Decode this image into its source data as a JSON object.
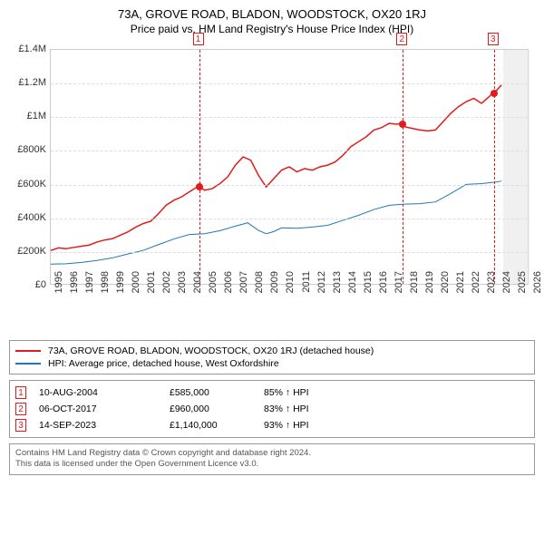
{
  "title": "73A, GROVE ROAD, BLADON, WOODSTOCK, OX20 1RJ",
  "subtitle": "Price paid vs. HM Land Registry's House Price Index (HPI)",
  "chart": {
    "type": "line",
    "x_range": [
      1995,
      2026
    ],
    "y_range": [
      0,
      1400000
    ],
    "y_ticks": [
      {
        "v": 0,
        "label": "£0"
      },
      {
        "v": 200000,
        "label": "£200K"
      },
      {
        "v": 400000,
        "label": "£400K"
      },
      {
        "v": 600000,
        "label": "£600K"
      },
      {
        "v": 800000,
        "label": "£800K"
      },
      {
        "v": 1000000,
        "label": "£1M"
      },
      {
        "v": 1200000,
        "label": "£1.2M"
      },
      {
        "v": 1400000,
        "label": "£1.4M"
      }
    ],
    "x_ticks": [
      1995,
      1996,
      1997,
      1998,
      1999,
      2000,
      2001,
      2002,
      2003,
      2004,
      2005,
      2006,
      2007,
      2008,
      2009,
      2010,
      2011,
      2012,
      2013,
      2014,
      2015,
      2016,
      2017,
      2018,
      2019,
      2020,
      2021,
      2022,
      2023,
      2024,
      2025,
      2026
    ],
    "shaded_future": {
      "from": 2024.3,
      "to": 2026,
      "color": "#e6e6e6"
    },
    "series_property": {
      "color": "#e31a1c",
      "width": 1.5,
      "label": "73A, GROVE ROAD, BLADON, WOODSTOCK, OX20 1RJ (detached house)",
      "data": [
        [
          1995.0,
          200000
        ],
        [
          1995.5,
          215000
        ],
        [
          1996.0,
          210000
        ],
        [
          1996.5,
          218000
        ],
        [
          1997.0,
          225000
        ],
        [
          1997.5,
          232000
        ],
        [
          1998.0,
          250000
        ],
        [
          1998.5,
          262000
        ],
        [
          1999.0,
          270000
        ],
        [
          1999.5,
          290000
        ],
        [
          2000.0,
          310000
        ],
        [
          2000.5,
          338000
        ],
        [
          2001.0,
          360000
        ],
        [
          2001.5,
          375000
        ],
        [
          2002.0,
          420000
        ],
        [
          2002.5,
          470000
        ],
        [
          2003.0,
          500000
        ],
        [
          2003.5,
          520000
        ],
        [
          2004.0,
          550000
        ],
        [
          2004.6,
          585000
        ],
        [
          2005.0,
          560000
        ],
        [
          2005.5,
          570000
        ],
        [
          2006.0,
          600000
        ],
        [
          2006.5,
          640000
        ],
        [
          2007.0,
          710000
        ],
        [
          2007.5,
          760000
        ],
        [
          2008.0,
          740000
        ],
        [
          2008.5,
          650000
        ],
        [
          2009.0,
          580000
        ],
        [
          2009.5,
          630000
        ],
        [
          2010.0,
          680000
        ],
        [
          2010.5,
          700000
        ],
        [
          2011.0,
          670000
        ],
        [
          2011.5,
          690000
        ],
        [
          2012.0,
          680000
        ],
        [
          2012.5,
          700000
        ],
        [
          2013.0,
          710000
        ],
        [
          2013.5,
          730000
        ],
        [
          2014.0,
          770000
        ],
        [
          2014.5,
          820000
        ],
        [
          2015.0,
          850000
        ],
        [
          2015.5,
          880000
        ],
        [
          2016.0,
          920000
        ],
        [
          2016.5,
          935000
        ],
        [
          2017.0,
          960000
        ],
        [
          2017.5,
          955000
        ],
        [
          2017.8,
          960000
        ],
        [
          2018.0,
          940000
        ],
        [
          2018.5,
          930000
        ],
        [
          2019.0,
          920000
        ],
        [
          2019.5,
          915000
        ],
        [
          2020.0,
          920000
        ],
        [
          2020.5,
          970000
        ],
        [
          2021.0,
          1020000
        ],
        [
          2021.5,
          1060000
        ],
        [
          2022.0,
          1090000
        ],
        [
          2022.5,
          1110000
        ],
        [
          2023.0,
          1080000
        ],
        [
          2023.5,
          1120000
        ],
        [
          2023.7,
          1140000
        ],
        [
          2024.0,
          1160000
        ],
        [
          2024.3,
          1190000
        ]
      ]
    },
    "series_hpi": {
      "color": "#1f78b4",
      "width": 1,
      "label": "HPI: Average price, detached house, West Oxfordshire",
      "data": [
        [
          1995.0,
          118000
        ],
        [
          1996.0,
          120000
        ],
        [
          1997.0,
          128000
        ],
        [
          1998.0,
          140000
        ],
        [
          1999.0,
          155000
        ],
        [
          2000.0,
          178000
        ],
        [
          2001.0,
          200000
        ],
        [
          2002.0,
          235000
        ],
        [
          2003.0,
          268000
        ],
        [
          2004.0,
          295000
        ],
        [
          2005.0,
          300000
        ],
        [
          2006.0,
          318000
        ],
        [
          2007.0,
          345000
        ],
        [
          2007.8,
          365000
        ],
        [
          2008.5,
          320000
        ],
        [
          2009.0,
          300000
        ],
        [
          2009.5,
          313000
        ],
        [
          2010.0,
          335000
        ],
        [
          2011.0,
          332000
        ],
        [
          2012.0,
          340000
        ],
        [
          2013.0,
          350000
        ],
        [
          2014.0,
          380000
        ],
        [
          2015.0,
          410000
        ],
        [
          2016.0,
          445000
        ],
        [
          2017.0,
          470000
        ],
        [
          2018.0,
          477000
        ],
        [
          2019.0,
          480000
        ],
        [
          2020.0,
          490000
        ],
        [
          2021.0,
          540000
        ],
        [
          2022.0,
          595000
        ],
        [
          2023.0,
          600000
        ],
        [
          2024.0,
          610000
        ],
        [
          2024.3,
          615000
        ]
      ]
    },
    "vlines": [
      {
        "x": 2004.6,
        "num": "1",
        "marker_y": 585000
      },
      {
        "x": 2017.8,
        "num": "2",
        "marker_y": 960000
      },
      {
        "x": 2023.7,
        "num": "3",
        "marker_y": 1140000
      }
    ],
    "marker_color": "#e31a1c"
  },
  "sales": [
    {
      "num": "1",
      "date": "10-AUG-2004",
      "price": "£585,000",
      "hpi": "85% ↑ HPI"
    },
    {
      "num": "2",
      "date": "06-OCT-2017",
      "price": "£960,000",
      "hpi": "83% ↑ HPI"
    },
    {
      "num": "3",
      "date": "14-SEP-2023",
      "price": "£1,140,000",
      "hpi": "93% ↑ HPI"
    }
  ],
  "footer_lines": [
    "Contains HM Land Registry data © Crown copyright and database right 2024.",
    "This data is licensed under the Open Government Licence v3.0."
  ]
}
